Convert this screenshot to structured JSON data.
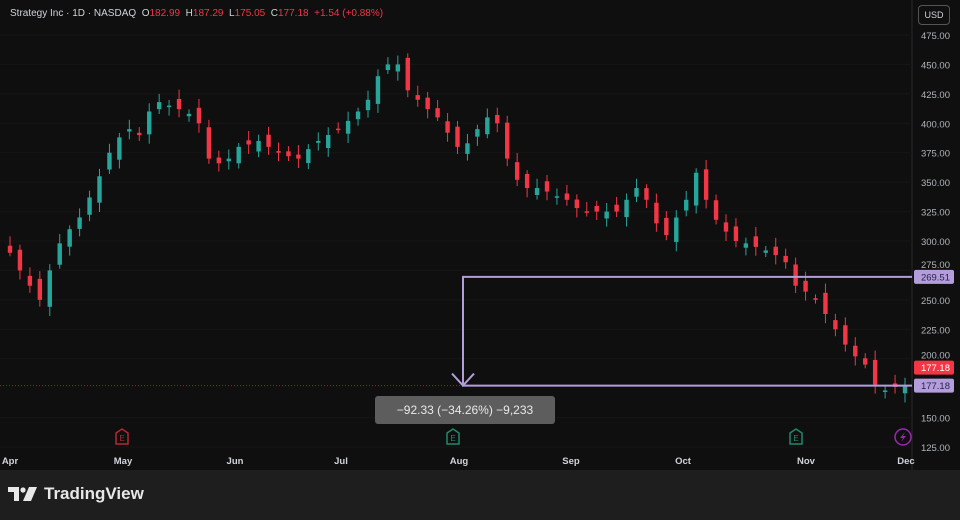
{
  "header": {
    "symbol": "Strategy Inc · 1D · NASDAQ",
    "open_label": "O",
    "open": "182.99",
    "high_label": "H",
    "high": "187.29",
    "low_label": "L",
    "low": "175.05",
    "close_label": "C",
    "close": "177.18",
    "change": "+1.54 (+0.88%)",
    "currency_button": "USD"
  },
  "measure": {
    "label": "−92.33 (−34.26%) −9,233",
    "from_price": "269.51",
    "to_price": "177.18"
  },
  "last_price": "177.18",
  "colors": {
    "up": "#26a69a",
    "down": "#f23645",
    "measure": "#b39ddb",
    "background": "#0f0f0f"
  },
  "events": [
    {
      "icon": "earnings-icon",
      "letter": "E",
      "month": "May",
      "color": "#b22833"
    },
    {
      "icon": "earnings-icon",
      "letter": "E",
      "month": "Aug",
      "color": "#1e8a6e"
    },
    {
      "icon": "earnings-icon",
      "letter": "E",
      "month": "Nov",
      "color": "#1e8a6e"
    },
    {
      "icon": "lightning-icon",
      "letter": "",
      "month": "Dec",
      "color": "#9c27b0"
    }
  ],
  "footer": {
    "brand": "TradingView"
  },
  "chart_data": {
    "type": "candlestick",
    "ylim": [
      125,
      475
    ],
    "y_ticks": [
      "475.00",
      "450.00",
      "425.00",
      "400.00",
      "375.00",
      "350.00",
      "325.00",
      "300.00",
      "275.00",
      "250.00",
      "225.00",
      "200.00",
      "150.00",
      "125.00"
    ],
    "x_ticks": [
      "Apr",
      "May",
      "Jun",
      "Jul",
      "Aug",
      "Sep",
      "Oct",
      "Nov",
      "Dec"
    ],
    "closes": [
      290,
      275,
      262,
      250,
      275,
      298,
      310,
      320,
      337,
      355,
      375,
      388,
      395,
      390,
      410,
      418,
      415,
      412,
      408,
      400,
      370,
      366,
      370,
      380,
      382,
      385,
      380,
      375,
      372,
      370,
      378,
      385,
      390,
      395,
      402,
      410,
      420,
      440,
      450,
      450,
      428,
      420,
      412,
      405,
      392,
      380,
      383,
      395,
      405,
      400,
      370,
      352,
      345,
      345,
      342,
      338,
      335,
      328,
      325,
      325,
      325,
      325,
      335,
      345,
      335,
      315,
      305,
      320,
      335,
      358,
      335,
      318,
      308,
      300,
      298,
      295,
      292,
      288,
      282,
      262,
      257,
      250,
      238,
      225,
      212,
      202,
      195,
      178,
      173,
      176,
      177.18
    ]
  }
}
